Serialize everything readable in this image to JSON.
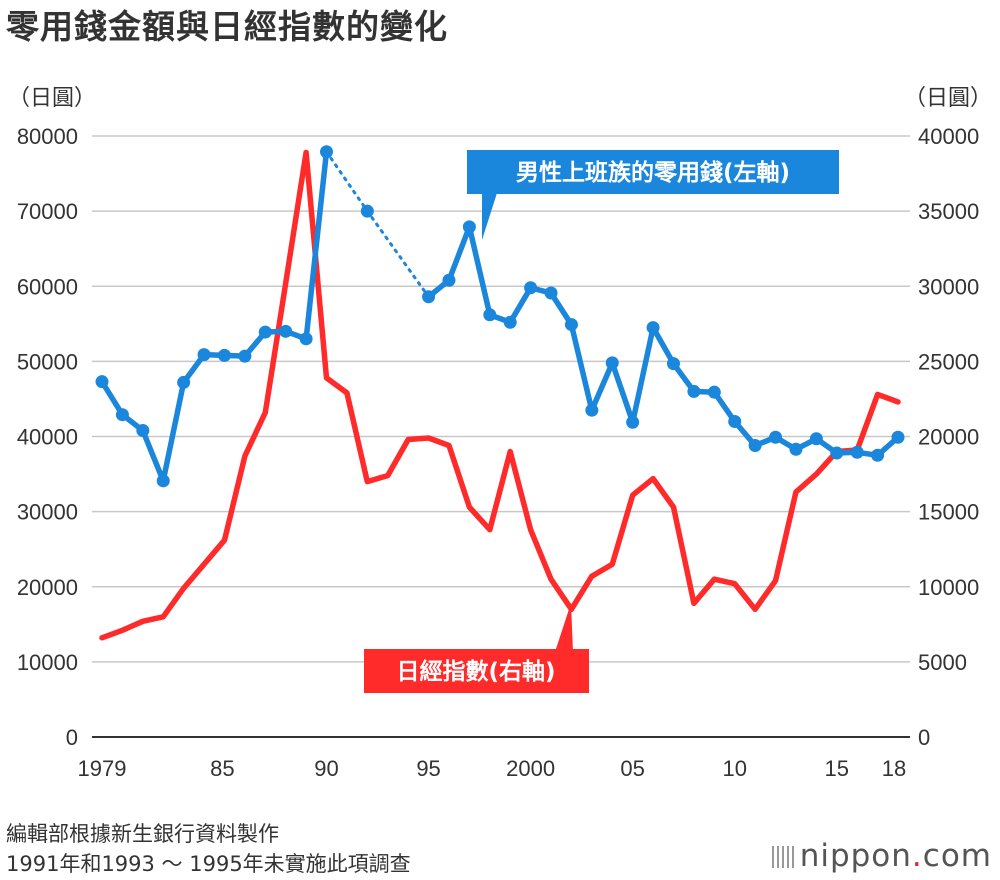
{
  "title": "零用錢金額與日經指數的變化",
  "unit_left": "（日圓）",
  "unit_right": "（日圓）",
  "note_source": "編輯部根據新生銀行資料製作",
  "note_missing": "1991年和1993 ～ 1995年未實施此項調查",
  "brand": {
    "name": "nippon",
    "suffix": "com",
    "dot": "."
  },
  "colors": {
    "allowance": "#1a86dc",
    "nikkei": "#ff2a2a",
    "grid": "#c8c8c8",
    "axis": "#333333"
  },
  "chart_data": {
    "type": "line",
    "title": "零用錢金額與日經指數的變化",
    "x_ticks": [
      "1979",
      "85",
      "90",
      "95",
      "2000",
      "05",
      "10",
      "15",
      "18"
    ],
    "x_tick_years": [
      1979,
      1984.9,
      1990,
      1995,
      2000,
      2005,
      2010,
      2015,
      2018
    ],
    "y_left_ticks": [
      "0",
      "10000",
      "20000",
      "30000",
      "40000",
      "50000",
      "60000",
      "70000",
      "80000"
    ],
    "y_right_ticks": [
      "0",
      "5000",
      "10000",
      "15000",
      "20000",
      "25000",
      "30000",
      "35000",
      "40000"
    ],
    "ylim_left": [
      0,
      80000
    ],
    "ylim_right": [
      0,
      40000
    ],
    "xlim": [
      1979,
      2018
    ],
    "series": [
      {
        "name": "男性上班族的零用錢(左軸)",
        "axis": "left",
        "marker": "dot",
        "x": [
          1979,
          1980,
          1981,
          1982,
          1983,
          1984,
          1985,
          1986,
          1987,
          1988,
          1989,
          1990,
          1992,
          1995,
          1996,
          1997,
          1998,
          1999,
          2000,
          2001,
          2002,
          2003,
          2004,
          2005,
          2006,
          2007,
          2008,
          2009,
          2010,
          2011,
          2012,
          2013,
          2014,
          2015,
          2016,
          2017,
          2018
        ],
        "values": [
          47300,
          42900,
          40800,
          34100,
          47200,
          50900,
          50800,
          50700,
          53900,
          54000,
          53000,
          77900,
          70000,
          58600,
          60800,
          67900,
          56200,
          55200,
          59800,
          59100,
          54900,
          43500,
          49800,
          41900,
          54500,
          49700,
          46000,
          45900,
          42000,
          38800,
          39900,
          38300,
          39700,
          37800,
          37900,
          37500,
          39900
        ],
        "gaps_after_x": [
          1990,
          1992
        ]
      },
      {
        "name": "日經指數(右軸)",
        "axis": "right",
        "marker": "none",
        "x": [
          1979,
          1980,
          1981,
          1982,
          1983,
          1984,
          1985,
          1986,
          1987,
          1988,
          1989,
          1990,
          1991,
          1992,
          1993,
          1994,
          1995,
          1996,
          1997,
          1998,
          1999,
          2000,
          2001,
          2002,
          2003,
          2004,
          2005,
          2006,
          2007,
          2008,
          2009,
          2010,
          2011,
          2012,
          2013,
          2014,
          2015,
          2016,
          2017,
          2018
        ],
        "values": [
          6600,
          7100,
          7700,
          8000,
          9900,
          11500,
          13100,
          18700,
          21600,
          30200,
          38900,
          23900,
          22900,
          17000,
          17400,
          19800,
          19900,
          19400,
          15300,
          13800,
          19000,
          13800,
          10500,
          8500,
          10700,
          11500,
          16100,
          17200,
          15300,
          8900,
          10500,
          10200,
          8500,
          10400,
          16300,
          17500,
          19000,
          19100,
          22800,
          22300
        ]
      }
    ],
    "legend": [
      {
        "label": "男性上班族的零用錢(左軸)",
        "series": 0
      },
      {
        "label": "日經指數(右軸)",
        "series": 1
      }
    ]
  }
}
